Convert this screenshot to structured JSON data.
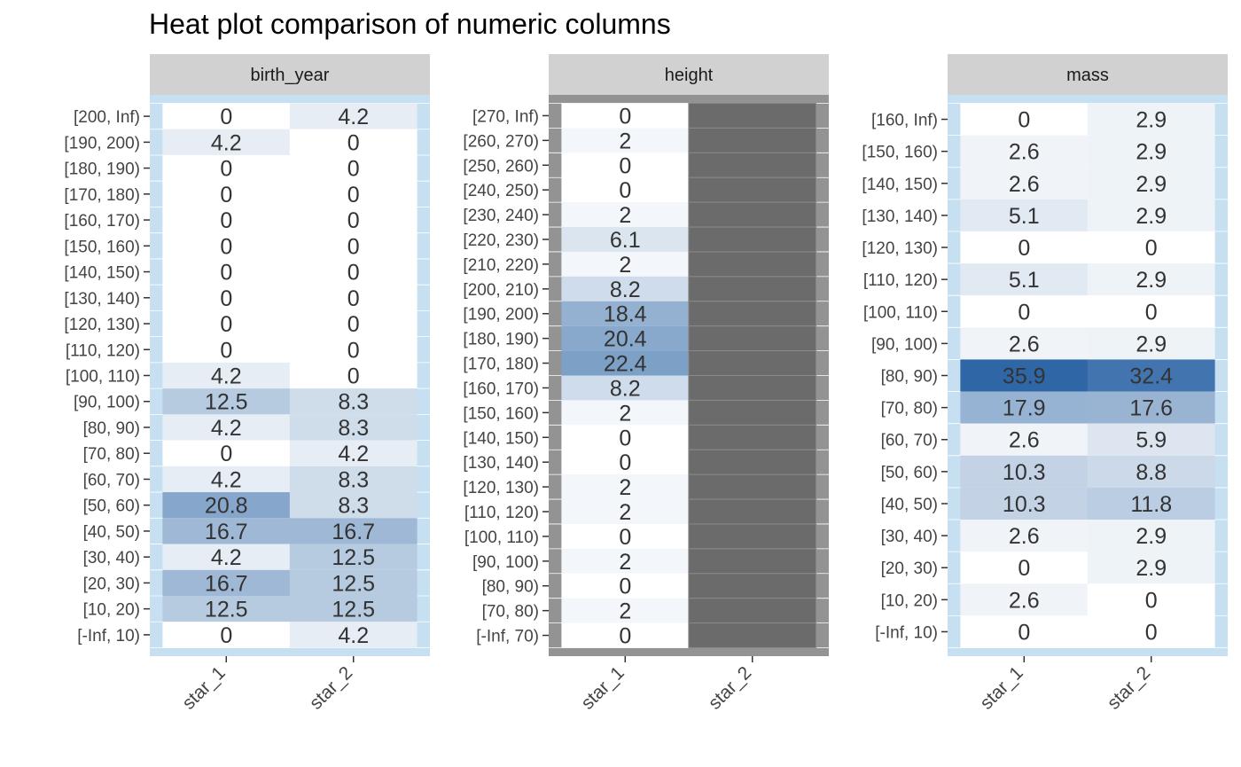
{
  "chart_data": {
    "type": "heatmap",
    "title": "Heat plot comparison of numeric columns",
    "x_categories": [
      "star_1",
      "star_2"
    ],
    "panels": [
      {
        "name": "birth_year",
        "missing_columns": [],
        "rows": [
          "[200, Inf)",
          "[190, 200)",
          "[180, 190)",
          "[170, 180)",
          "[160, 170)",
          "[150, 160)",
          "[140, 150)",
          "[130, 140)",
          "[120, 130)",
          "[110, 120)",
          "[100, 110)",
          "[90, 100)",
          "[80, 90)",
          "[70, 80)",
          "[60, 70)",
          "[50, 60)",
          "[40, 50)",
          "[30, 40)",
          "[20, 30)",
          "[10, 20)",
          "[-Inf, 10)"
        ],
        "values": [
          [
            0,
            4.2
          ],
          [
            4.2,
            0
          ],
          [
            0,
            0
          ],
          [
            0,
            0
          ],
          [
            0,
            0
          ],
          [
            0,
            0
          ],
          [
            0,
            0
          ],
          [
            0,
            0
          ],
          [
            0,
            0
          ],
          [
            0,
            0
          ],
          [
            4.2,
            0
          ],
          [
            12.5,
            8.3
          ],
          [
            4.2,
            8.3
          ],
          [
            0,
            4.2
          ],
          [
            4.2,
            8.3
          ],
          [
            20.8,
            8.3
          ],
          [
            16.7,
            16.7
          ],
          [
            4.2,
            12.5
          ],
          [
            16.7,
            12.5
          ],
          [
            12.5,
            12.5
          ],
          [
            0,
            4.2
          ]
        ]
      },
      {
        "name": "height",
        "missing_columns": [
          "star_2"
        ],
        "rows": [
          "[270, Inf)",
          "[260, 270)",
          "[250, 260)",
          "[240, 250)",
          "[230, 240)",
          "[220, 230)",
          "[210, 220)",
          "[200, 210)",
          "[190, 200)",
          "[180, 190)",
          "[170, 180)",
          "[160, 170)",
          "[150, 160)",
          "[140, 150)",
          "[130, 140)",
          "[120, 130)",
          "[110, 120)",
          "[100, 110)",
          "[90, 100)",
          "[80, 90)",
          "[70, 80)",
          "[-Inf, 70)"
        ],
        "values": [
          [
            0,
            null
          ],
          [
            2,
            null
          ],
          [
            0,
            null
          ],
          [
            0,
            null
          ],
          [
            2,
            null
          ],
          [
            6.1,
            null
          ],
          [
            2,
            null
          ],
          [
            8.2,
            null
          ],
          [
            18.4,
            null
          ],
          [
            20.4,
            null
          ],
          [
            22.4,
            null
          ],
          [
            8.2,
            null
          ],
          [
            2,
            null
          ],
          [
            0,
            null
          ],
          [
            0,
            null
          ],
          [
            2,
            null
          ],
          [
            2,
            null
          ],
          [
            0,
            null
          ],
          [
            2,
            null
          ],
          [
            0,
            null
          ],
          [
            2,
            null
          ],
          [
            0,
            null
          ]
        ]
      },
      {
        "name": "mass",
        "missing_columns": [],
        "rows": [
          "[160, Inf)",
          "[150, 160)",
          "[140, 150)",
          "[130, 140)",
          "[120, 130)",
          "[110, 120)",
          "[100, 110)",
          "[90, 100)",
          "[80, 90)",
          "[70, 80)",
          "[60, 70)",
          "[50, 60)",
          "[40, 50)",
          "[30, 40)",
          "[20, 30)",
          "[10, 20)",
          "[-Inf, 10)"
        ],
        "values": [
          [
            0,
            2.9
          ],
          [
            2.6,
            2.9
          ],
          [
            2.6,
            2.9
          ],
          [
            5.1,
            2.9
          ],
          [
            0,
            0
          ],
          [
            5.1,
            2.9
          ],
          [
            0,
            0
          ],
          [
            2.6,
            2.9
          ],
          [
            35.9,
            32.4
          ],
          [
            17.9,
            17.6
          ],
          [
            2.6,
            5.9
          ],
          [
            10.3,
            8.8
          ],
          [
            10.3,
            11.8
          ],
          [
            2.6,
            2.9
          ],
          [
            0,
            2.9
          ],
          [
            2.6,
            0
          ],
          [
            0,
            0
          ]
        ]
      }
    ],
    "colors": {
      "low": "#ffffff",
      "high": "#2e66a6",
      "panel_background": "#c6e0f2",
      "missing_background": "#939393",
      "missing_cell": "#6b6b6b",
      "strip_background": "#d1d1d1",
      "text": "#333333",
      "axis_text": "#444444"
    },
    "legend": "none",
    "grid": true
  }
}
